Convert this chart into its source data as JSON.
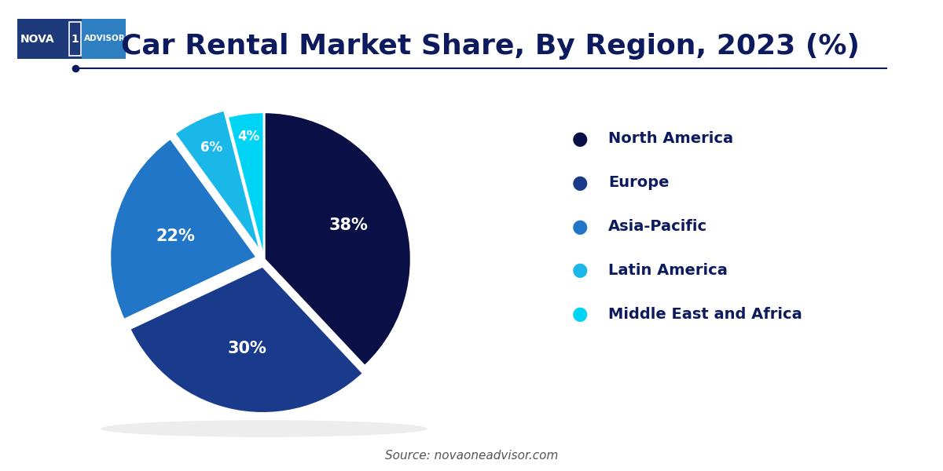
{
  "title": "Car Rental Market Share, By Region, 2023 (%)",
  "title_color": "#0d1b5e",
  "title_fontsize": 26,
  "source_text": "Source: novaoneadvisor.com",
  "labels": [
    "North America",
    "Europe",
    "Asia-Pacific",
    "Latin America",
    "Middle East and Africa"
  ],
  "values": [
    38,
    30,
    22,
    6,
    4
  ],
  "colors": [
    "#0a1045",
    "#1a3a8c",
    "#2176c7",
    "#1ab8e8",
    "#00d4f5"
  ],
  "pct_labels": [
    "38%",
    "30%",
    "22%",
    "6%",
    "4%"
  ],
  "explode": [
    0,
    0.05,
    0.05,
    0.05,
    0
  ],
  "background_color": "#ffffff",
  "legend_text_color": "#0d1b5e",
  "legend_fontsize": 14,
  "separator_color": "#0d1b5e"
}
